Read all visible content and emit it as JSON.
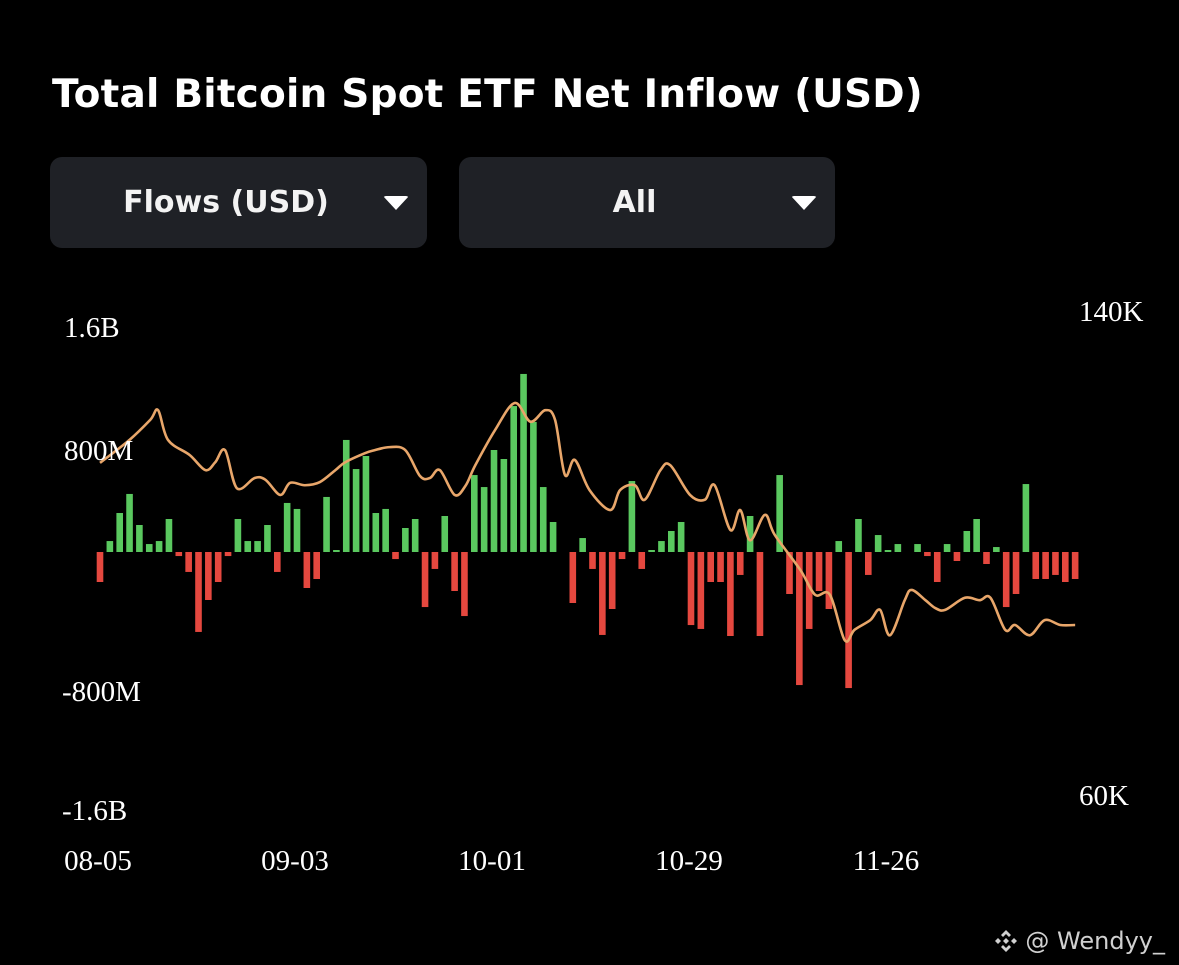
{
  "title": "Total Bitcoin Spot ETF Net Inflow (USD)",
  "controls": {
    "metric_dropdown": {
      "selected": "Flows (USD)",
      "icon": "caret-down-icon"
    },
    "range_dropdown": {
      "selected": "All",
      "icon": "caret-down-icon"
    }
  },
  "chart_data": {
    "type": "bar+line",
    "title": "Total Bitcoin Spot ETF Net Inflow (USD)",
    "left_axis": {
      "ticks": [
        {
          "label": "1.6B",
          "value": 1600
        },
        {
          "label": "800M",
          "value": 800
        },
        {
          "label": "-800M",
          "value": -800
        },
        {
          "label": "-1.6B",
          "value": -1600
        }
      ],
      "unit": "USD millions"
    },
    "right_axis": {
      "ticks": [
        {
          "label": "140K",
          "value": 140
        },
        {
          "label": "60K",
          "value": 60
        }
      ],
      "range": [
        60,
        140
      ],
      "unit": "USD thousands"
    },
    "x_ticks": [
      {
        "label": "08-05",
        "index": 0
      },
      {
        "label": "09-03",
        "index": 20
      },
      {
        "label": "10-01",
        "index": 40
      },
      {
        "label": "10-29",
        "index": 60
      },
      {
        "label": "11-26",
        "index": 80
      }
    ],
    "colors": {
      "inflow": "#5ac85f",
      "outflow": "#e5483f",
      "price": "#e8a66a"
    },
    "grid": false,
    "bar_values_musd": [
      -200,
      73,
      260,
      387,
      180,
      53,
      73,
      220,
      -27,
      -133,
      -533,
      -320,
      -200,
      -27,
      220,
      73,
      73,
      180,
      -133,
      327,
      287,
      -240,
      -180,
      367,
      11,
      747,
      553,
      640,
      260,
      287,
      -47,
      160,
      220,
      -367,
      -113,
      240,
      -260,
      -427,
      513,
      433,
      680,
      620,
      973,
      1187,
      867,
      433,
      200,
      0,
      -340,
      93,
      -113,
      -553,
      -380,
      -47,
      473,
      -113,
      13,
      73,
      140,
      200,
      -487,
      -513,
      -200,
      -200,
      -560,
      -153,
      240,
      -560,
      0,
      513,
      -280,
      -887,
      -513,
      -260,
      -380,
      73,
      -907,
      220,
      -153,
      113,
      13,
      53,
      0,
      53,
      -27,
      -200,
      53,
      -60,
      140,
      220,
      -80,
      33,
      -367,
      -280,
      453,
      -180,
      -180,
      -153,
      -200,
      -180
    ],
    "price_k": [
      [
        0,
        114.9
      ],
      [
        3,
        118.7
      ],
      [
        5.1,
        122.0
      ],
      [
        5.9,
        123.6
      ],
      [
        6.9,
        118.7
      ],
      [
        9.1,
        116.2
      ],
      [
        10.7,
        113.7
      ],
      [
        11.7,
        115.0
      ],
      [
        12.7,
        117.0
      ],
      [
        13.9,
        110.7
      ],
      [
        15.7,
        112.4
      ],
      [
        16.8,
        112.1
      ],
      [
        18.3,
        109.6
      ],
      [
        19.3,
        111.6
      ],
      [
        20.8,
        111.2
      ],
      [
        22.3,
        111.7
      ],
      [
        23.9,
        113.7
      ],
      [
        24.9,
        115.0
      ],
      [
        26.9,
        116.5
      ],
      [
        27.9,
        117.0
      ],
      [
        29.4,
        117.5
      ],
      [
        31.0,
        117.0
      ],
      [
        32.5,
        112.7
      ],
      [
        33.5,
        112.4
      ],
      [
        34.5,
        113.7
      ],
      [
        36.0,
        109.6
      ],
      [
        37.1,
        111.1
      ],
      [
        38.1,
        114.5
      ],
      [
        40.1,
        120.3
      ],
      [
        42.1,
        124.8
      ],
      [
        43.7,
        121.7
      ],
      [
        45.2,
        123.6
      ],
      [
        46.2,
        122.0
      ],
      [
        47.2,
        112.9
      ],
      [
        48.2,
        115.4
      ],
      [
        49.7,
        110.4
      ],
      [
        51.8,
        107.1
      ],
      [
        52.8,
        110.4
      ],
      [
        54.3,
        111.2
      ],
      [
        55.3,
        108.8
      ],
      [
        56.9,
        113.7
      ],
      [
        57.9,
        114.5
      ],
      [
        59.9,
        109.6
      ],
      [
        61.4,
        108.8
      ],
      [
        62.4,
        111.2
      ],
      [
        64.0,
        103.8
      ],
      [
        65.0,
        107.1
      ],
      [
        66.0,
        102.1
      ],
      [
        67.5,
        106.3
      ],
      [
        68.5,
        103.0
      ],
      [
        71.1,
        97.2
      ],
      [
        72.6,
        93.1
      ],
      [
        74.1,
        93.1
      ],
      [
        75.6,
        85.6
      ],
      [
        76.6,
        87.3
      ],
      [
        78.2,
        88.9
      ],
      [
        79.2,
        90.6
      ],
      [
        80.2,
        86.4
      ],
      [
        81.7,
        92.2
      ],
      [
        82.4,
        93.9
      ],
      [
        83.8,
        92.2
      ],
      [
        84.8,
        90.9
      ],
      [
        85.8,
        90.6
      ],
      [
        87.8,
        92.6
      ],
      [
        89.3,
        92.2
      ],
      [
        90.4,
        92.6
      ],
      [
        91.9,
        87.3
      ],
      [
        92.9,
        88.1
      ],
      [
        94.4,
        86.4
      ],
      [
        95.9,
        88.9
      ],
      [
        97.5,
        88.1
      ],
      [
        99.0,
        88.1
      ]
    ]
  },
  "watermark": {
    "text": "@ Wendyy_",
    "icon": "binance-logo-icon"
  }
}
